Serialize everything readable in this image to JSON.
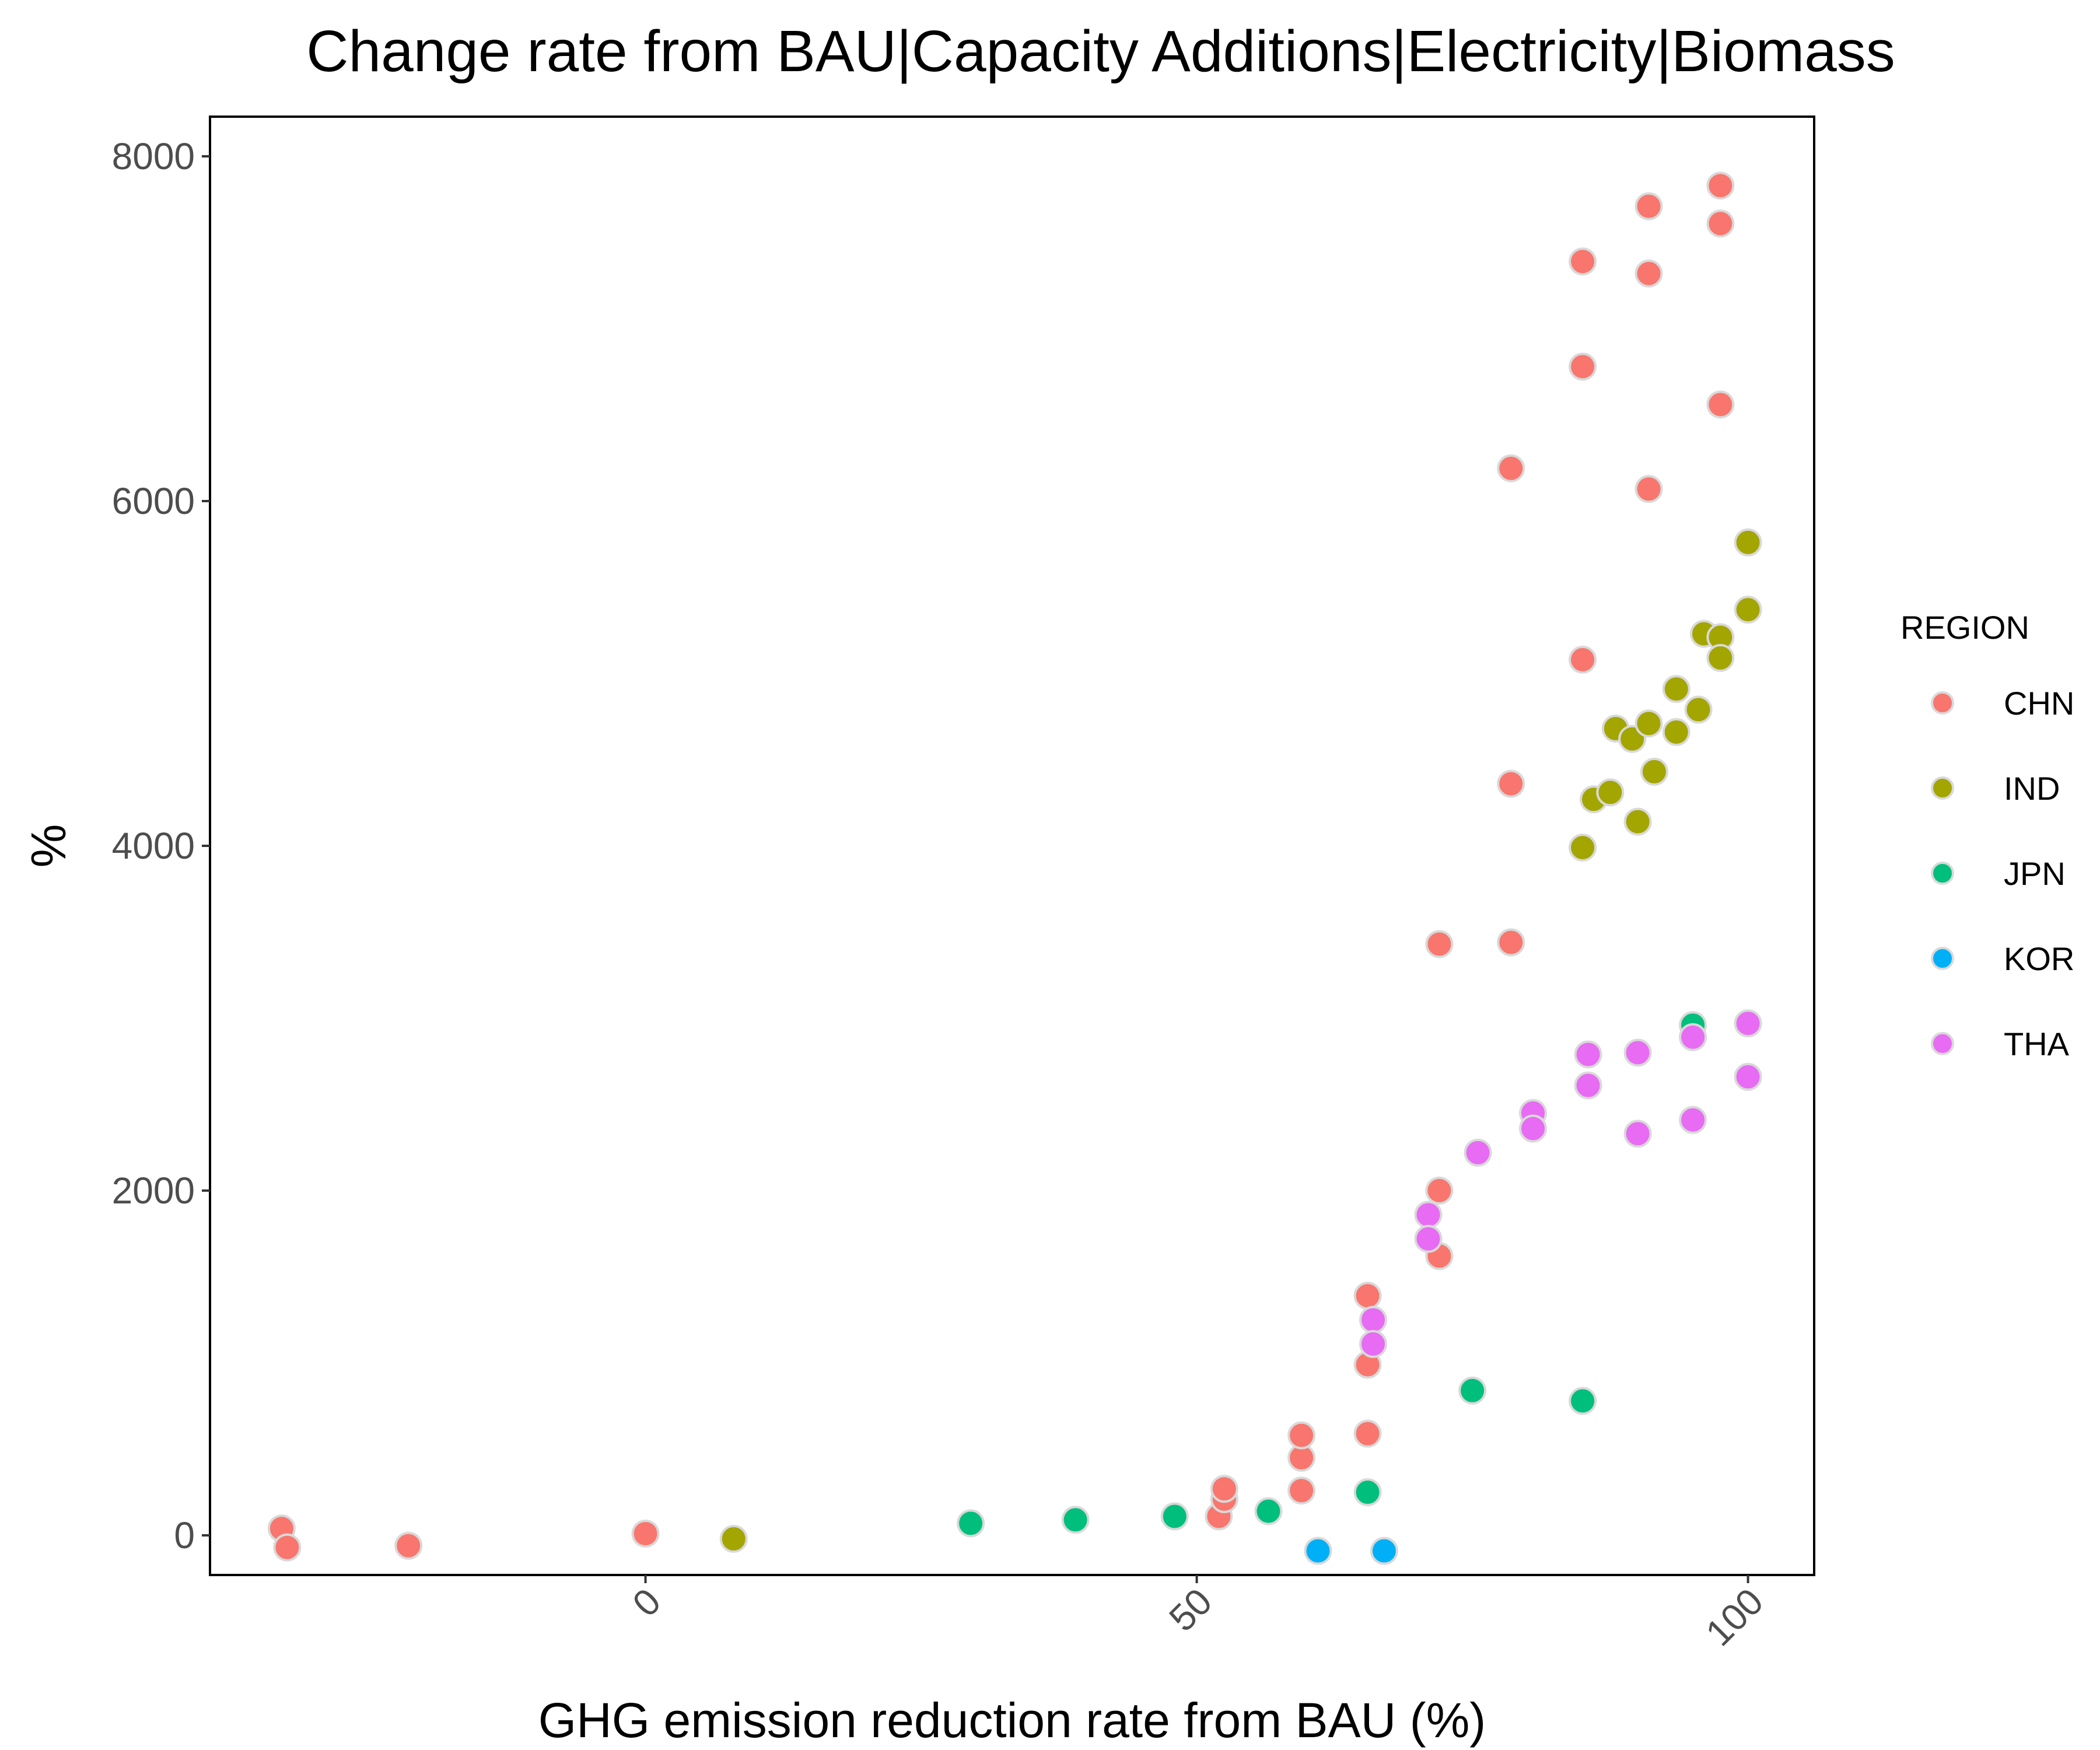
{
  "chart_data": {
    "type": "scatter",
    "title": "Change rate from BAU|Capacity Additions|Electricity|Biomass",
    "xlabel": "GHG emission reduction rate from BAU (%)",
    "ylabel": "%",
    "xlim": [
      -39.5,
      106
    ],
    "ylim": [
      -230,
      8230
    ],
    "x_ticks": [
      0,
      50,
      100
    ],
    "y_ticks": [
      0,
      2000,
      4000,
      6000,
      8000
    ],
    "grid": false,
    "legend": {
      "title": "REGION",
      "position": "right"
    },
    "series": [
      {
        "name": "CHN",
        "color": "#F8766D",
        "points": [
          [
            -33,
            40
          ],
          [
            -32.5,
            -70
          ],
          [
            -21.5,
            -60
          ],
          [
            0,
            10
          ],
          [
            52,
            110
          ],
          [
            52.5,
            210
          ],
          [
            52.5,
            270
          ],
          [
            59.5,
            260
          ],
          [
            59.5,
            450
          ],
          [
            59.5,
            580
          ],
          [
            65.5,
            590
          ],
          [
            65.5,
            990
          ],
          [
            65.5,
            1390
          ],
          [
            72,
            1620
          ],
          [
            72,
            2000
          ],
          [
            72,
            3430
          ],
          [
            78.5,
            3440
          ],
          [
            78.5,
            4360
          ],
          [
            78.5,
            6190
          ],
          [
            85,
            5080
          ],
          [
            85,
            6780
          ],
          [
            85,
            7390
          ],
          [
            91,
            6070
          ],
          [
            91,
            7320
          ],
          [
            91,
            7710
          ],
          [
            97.5,
            6560
          ],
          [
            97.5,
            7610
          ],
          [
            97.5,
            7830
          ]
        ]
      },
      {
        "name": "IND",
        "color": "#A3A500",
        "points": [
          [
            8,
            -20
          ],
          [
            85,
            3990
          ],
          [
            86,
            4270
          ],
          [
            87.5,
            4310
          ],
          [
            88,
            4680
          ],
          [
            89.5,
            4620
          ],
          [
            90,
            4140
          ],
          [
            91,
            4710
          ],
          [
            91.5,
            4430
          ],
          [
            93.5,
            4910
          ],
          [
            93.5,
            4660
          ],
          [
            95.5,
            4790
          ],
          [
            96,
            5230
          ],
          [
            97.5,
            5210
          ],
          [
            97.5,
            5090
          ],
          [
            100,
            5370
          ],
          [
            100,
            5760
          ]
        ]
      },
      {
        "name": "JPN",
        "color": "#00BF7D",
        "points": [
          [
            29.5,
            70
          ],
          [
            39,
            90
          ],
          [
            48,
            110
          ],
          [
            56.5,
            140
          ],
          [
            65.5,
            250
          ],
          [
            75,
            840
          ],
          [
            85,
            780
          ],
          [
            95,
            2960
          ]
        ]
      },
      {
        "name": "KOR",
        "color": "#00B0F6",
        "points": [
          [
            61,
            -90
          ],
          [
            67,
            -90
          ]
        ]
      },
      {
        "name": "THA",
        "color": "#E76BF3",
        "points": [
          [
            66,
            1250
          ],
          [
            66,
            1110
          ],
          [
            71,
            1860
          ],
          [
            71,
            1720
          ],
          [
            75.5,
            2220
          ],
          [
            80.5,
            2450
          ],
          [
            80.5,
            2360
          ],
          [
            85.5,
            2790
          ],
          [
            85.5,
            2610
          ],
          [
            90,
            2800
          ],
          [
            90,
            2330
          ],
          [
            95,
            2890
          ],
          [
            95,
            2410
          ],
          [
            100,
            2970
          ],
          [
            100,
            2660
          ]
        ]
      }
    ]
  }
}
